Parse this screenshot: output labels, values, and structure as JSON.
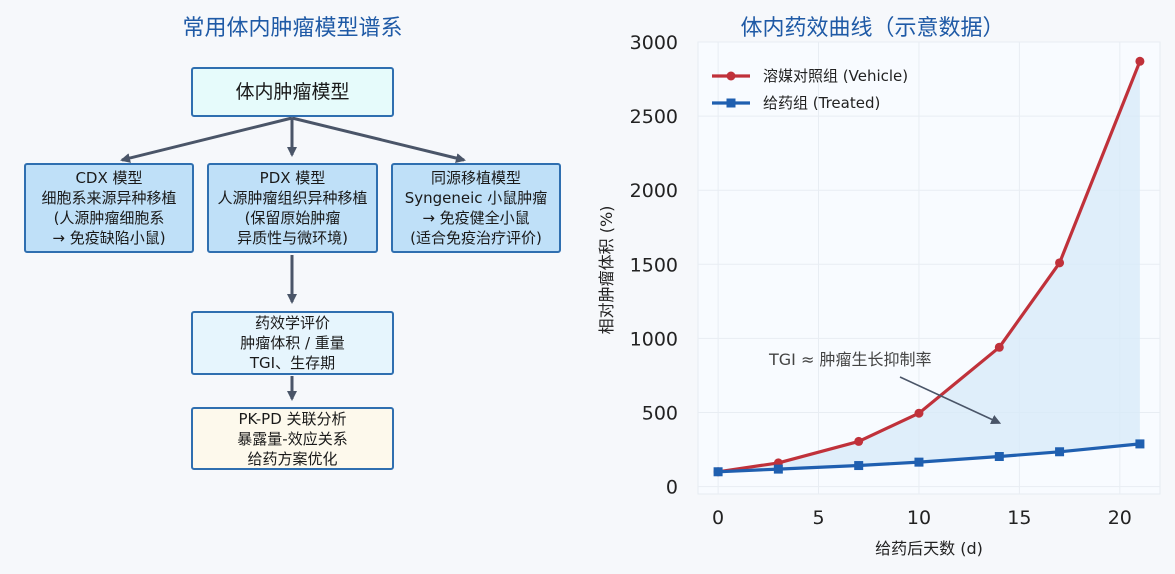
{
  "left_panel": {
    "title": "常用体内肿瘤模型谱系",
    "root": "体内肿瘤模型",
    "cdx": [
      "CDX 模型",
      "细胞系来源异种移植",
      "(人源肿瘤细胞系",
      "→ 免疫缺陷小鼠)"
    ],
    "pdx": [
      "PDX 模型",
      "人源肿瘤组织异种移植",
      "(保留原始肿瘤",
      "异质性与微环境)"
    ],
    "syngeneic": [
      "同源移植模型",
      "Syngeneic 小鼠肿瘤",
      "→ 免疫健全小鼠",
      "(适合免疫治疗评价)"
    ],
    "efficacy": [
      "药效学评价",
      "肿瘤体积 / 重量",
      "TGI、生存期"
    ],
    "pkpd": [
      "PK-PD 关联分析",
      "暴露量-效应关系",
      "给药方案优化"
    ],
    "colors": {
      "border": "#2f6fb0",
      "arrow": "#4a5568"
    }
  },
  "chart_data": {
    "type": "line",
    "title": "体内药效曲线（示意数据）",
    "xlabel": "给药后天数 (d)",
    "ylabel": "相对肿瘤体积 (%)",
    "xlim": [
      -1,
      22
    ],
    "ylim": [
      -50,
      3000
    ],
    "xticks": [
      0,
      5,
      10,
      15,
      20
    ],
    "yticks": [
      0,
      500,
      1000,
      1500,
      2000,
      2500,
      3000
    ],
    "grid": true,
    "legend_position": "top-left",
    "x": [
      0,
      3,
      7,
      10,
      14,
      17,
      21
    ],
    "series": [
      {
        "name": "溶媒对照组 (Vehicle)",
        "values": [
          100,
          160,
          305,
          495,
          940,
          1510,
          2870
        ],
        "color": "#c0313a",
        "marker": "circle"
      },
      {
        "name": "给药组 (Treated)",
        "values": [
          100,
          118,
          142,
          165,
          203,
          235,
          288
        ],
        "color": "#1f5fb0",
        "marker": "square"
      }
    ],
    "fill_between_color": "#d7eaf8",
    "annotation": {
      "text": "TGI ≈ 肿瘤生长抑制率",
      "arrow_to": [
        14,
        430
      ]
    }
  }
}
